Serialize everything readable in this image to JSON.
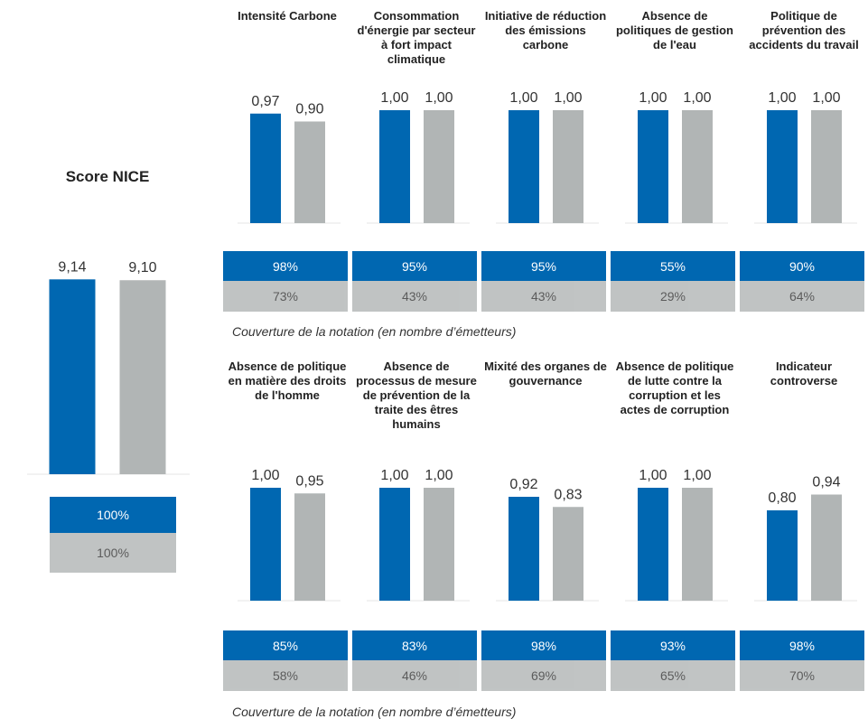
{
  "caption": "Couverture de la notation (en nombre d’émetteurs)",
  "chart_data": [
    {
      "type": "bar",
      "title": "Score NICE",
      "values": [
        9.14,
        9.1
      ],
      "value_labels": [
        "9,14",
        "9,10"
      ],
      "colors": [
        "#0067b1",
        "#b1b5b5"
      ],
      "ylim": [
        0,
        10
      ],
      "coverage": [
        "100%",
        "100%"
      ]
    },
    {
      "type": "bar",
      "title": "Intensité Carbone",
      "values": [
        0.97,
        0.9
      ],
      "value_labels": [
        "0,97",
        "0,90"
      ],
      "colors": [
        "#0067b1",
        "#b1b5b5"
      ],
      "ylim": [
        0,
        1
      ],
      "coverage": [
        "98%",
        "73%"
      ]
    },
    {
      "type": "bar",
      "title": "Consommation d'énergie par secteur à fort impact climatique",
      "values": [
        1.0,
        1.0
      ],
      "value_labels": [
        "1,00",
        "1,00"
      ],
      "colors": [
        "#0067b1",
        "#b1b5b5"
      ],
      "ylim": [
        0,
        1
      ],
      "coverage": [
        "95%",
        "43%"
      ]
    },
    {
      "type": "bar",
      "title": "Initiative de réduction des émissions carbone",
      "values": [
        1.0,
        1.0
      ],
      "value_labels": [
        "1,00",
        "1,00"
      ],
      "colors": [
        "#0067b1",
        "#b1b5b5"
      ],
      "ylim": [
        0,
        1
      ],
      "coverage": [
        "95%",
        "43%"
      ]
    },
    {
      "type": "bar",
      "title": "Absence de politiques de gestion de l'eau",
      "values": [
        1.0,
        1.0
      ],
      "value_labels": [
        "1,00",
        "1,00"
      ],
      "colors": [
        "#0067b1",
        "#b1b5b5"
      ],
      "ylim": [
        0,
        1
      ],
      "coverage": [
        "55%",
        "29%"
      ]
    },
    {
      "type": "bar",
      "title": "Politique de prévention des accidents du travail",
      "values": [
        1.0,
        1.0
      ],
      "value_labels": [
        "1,00",
        "1,00"
      ],
      "colors": [
        "#0067b1",
        "#b1b5b5"
      ],
      "ylim": [
        0,
        1
      ],
      "coverage": [
        "90%",
        "64%"
      ]
    },
    {
      "type": "bar",
      "title": "Absence de politique en matière des droits de l'homme",
      "values": [
        1.0,
        0.95
      ],
      "value_labels": [
        "1,00",
        "0,95"
      ],
      "colors": [
        "#0067b1",
        "#b1b5b5"
      ],
      "ylim": [
        0,
        1
      ],
      "coverage": [
        "85%",
        "58%"
      ]
    },
    {
      "type": "bar",
      "title": "Absence de processus de mesure de prévention de la traite des êtres humains",
      "values": [
        1.0,
        1.0
      ],
      "value_labels": [
        "1,00",
        "1,00"
      ],
      "colors": [
        "#0067b1",
        "#b1b5b5"
      ],
      "ylim": [
        0,
        1
      ],
      "coverage": [
        "83%",
        "46%"
      ]
    },
    {
      "type": "bar",
      "title": "Mixité des organes de gouvernance",
      "values": [
        0.92,
        0.83
      ],
      "value_labels": [
        "0,92",
        "0,83"
      ],
      "colors": [
        "#0067b1",
        "#b1b5b5"
      ],
      "ylim": [
        0,
        1
      ],
      "coverage": [
        "98%",
        "69%"
      ]
    },
    {
      "type": "bar",
      "title": "Absence de politique de lutte contre la corruption et les actes de corruption",
      "values": [
        1.0,
        1.0
      ],
      "value_labels": [
        "1,00",
        "1,00"
      ],
      "colors": [
        "#0067b1",
        "#b1b5b5"
      ],
      "ylim": [
        0,
        1
      ],
      "coverage": [
        "93%",
        "65%"
      ]
    },
    {
      "type": "bar",
      "title": "Indicateur controverse",
      "values": [
        0.8,
        0.94
      ],
      "value_labels": [
        "0,80",
        "0,94"
      ],
      "colors": [
        "#0067b1",
        "#b1b5b5"
      ],
      "ylim": [
        0,
        1
      ],
      "coverage": [
        "98%",
        "70%"
      ]
    }
  ]
}
